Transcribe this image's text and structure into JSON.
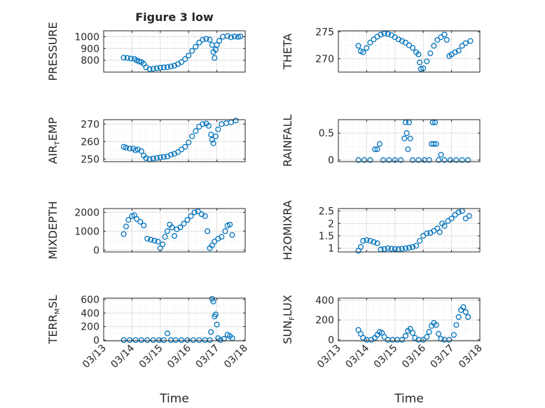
{
  "figure": {
    "title": "Figure 3 low",
    "xlabel": "Time",
    "date_ticks": [
      "03/13",
      "03/14",
      "03/15",
      "03/16",
      "03/17",
      "03/18"
    ]
  },
  "colors": {
    "marker": "#0072BD",
    "axis": "#262626",
    "grid": "#e0e0e0"
  },
  "chart_data": [
    {
      "type": "scatter",
      "name": "PRESSURE",
      "ylabel": "PRESSURE",
      "ylabel_sub": "",
      "xlim": [
        "03/13",
        "03/18"
      ],
      "ylim": [
        700,
        1050
      ],
      "yticks": [
        800,
        900,
        1000
      ],
      "grid": true,
      "points": [
        [
          "03/13 17:00",
          822
        ],
        [
          "03/13 20:00",
          820
        ],
        [
          "03/13 23:00",
          815
        ],
        [
          "03/14 02:00",
          812
        ],
        [
          "03/14 04:00",
          800
        ],
        [
          "03/14 06:00",
          790
        ],
        [
          "03/14 08:00",
          785
        ],
        [
          "03/14 10:00",
          770
        ],
        [
          "03/14 12:00",
          740
        ],
        [
          "03/14 15:00",
          725
        ],
        [
          "03/14 18:00",
          728
        ],
        [
          "03/14 21:00",
          732
        ],
        [
          "03/15 00:00",
          737
        ],
        [
          "03/15 03:00",
          740
        ],
        [
          "03/15 06:00",
          742
        ],
        [
          "03/15 09:00",
          748
        ],
        [
          "03/15 12:00",
          755
        ],
        [
          "03/15 15:00",
          768
        ],
        [
          "03/15 18:00",
          785
        ],
        [
          "03/15 21:00",
          810
        ],
        [
          "03/16 00:00",
          840
        ],
        [
          "03/16 03:00",
          880
        ],
        [
          "03/16 06:00",
          915
        ],
        [
          "03/16 09:00",
          950
        ],
        [
          "03/16 12:00",
          975
        ],
        [
          "03/16 15:00",
          982
        ],
        [
          "03/16 18:00",
          975
        ],
        [
          "03/16 20:00",
          930
        ],
        [
          "03/16 21:00",
          870
        ],
        [
          "03/16 22:00",
          820
        ],
        [
          "03/16 23:00",
          890
        ],
        [
          "03/17 00:00",
          930
        ],
        [
          "03/17 02:00",
          965
        ],
        [
          "03/17 05:00",
          1000
        ],
        [
          "03/17 09:00",
          1005
        ],
        [
          "03/17 12:00",
          995
        ],
        [
          "03/17 15:00",
          1002
        ],
        [
          "03/17 18:00",
          998
        ],
        [
          "03/17 20:00",
          1003
        ]
      ]
    },
    {
      "type": "scatter",
      "name": "THETA",
      "ylabel": "THETA",
      "ylabel_sub": "",
      "xlim": [
        "03/13",
        "03/18"
      ],
      "ylim": [
        267.5,
        275.2
      ],
      "yticks": [
        270,
        275
      ],
      "grid": true,
      "points": [
        [
          "03/13 17:00",
          272.4
        ],
        [
          "03/13 19:00",
          271.4
        ],
        [
          "03/13 21:00",
          271.2
        ],
        [
          "03/14 00:00",
          272
        ],
        [
          "03/14 03:00",
          273
        ],
        [
          "03/14 06:00",
          273.6
        ],
        [
          "03/14 09:00",
          274.1
        ],
        [
          "03/14 12:00",
          274.5
        ],
        [
          "03/14 15:00",
          274.7
        ],
        [
          "03/14 18:00",
          274.6
        ],
        [
          "03/14 21:00",
          274.4
        ],
        [
          "03/15 00:00",
          274
        ],
        [
          "03/15 03:00",
          273.6
        ],
        [
          "03/15 06:00",
          273.3
        ],
        [
          "03/15 09:00",
          273
        ],
        [
          "03/15 12:00",
          272.5
        ],
        [
          "03/15 15:00",
          272
        ],
        [
          "03/15 18:00",
          271.2
        ],
        [
          "03/15 20:00",
          270.8
        ],
        [
          "03/15 21:00",
          269.3
        ],
        [
          "03/15 22:00",
          268.1
        ],
        [
          "03/16 00:00",
          268.2
        ],
        [
          "03/16 03:00",
          269.5
        ],
        [
          "03/16 06:00",
          271
        ],
        [
          "03/16 09:00",
          272.4
        ],
        [
          "03/16 12:00",
          273.5
        ],
        [
          "03/16 15:00",
          274
        ],
        [
          "03/16 18:00",
          274.5
        ],
        [
          "03/16 20:00",
          273.5
        ],
        [
          "03/16 22:00",
          270.5
        ],
        [
          "03/17 00:00",
          270.8
        ],
        [
          "03/17 03:00",
          271.2
        ],
        [
          "03/17 06:00",
          271.5
        ],
        [
          "03/17 09:00",
          272.4
        ],
        [
          "03/17 12:00",
          272.9
        ],
        [
          "03/17 16:00",
          273.3
        ]
      ]
    },
    {
      "type": "scatter",
      "name": "AIR_TEMP",
      "ylabel": "AIR",
      "ylabel_sub": "T",
      "ylabel_rest": "EMP",
      "xlim": [
        "03/13",
        "03/18"
      ],
      "ylim": [
        248.5,
        272.5
      ],
      "yticks": [
        250,
        260,
        270
      ],
      "grid": true,
      "points": [
        [
          "03/13 17:00",
          257
        ],
        [
          "03/13 19:00",
          256.5
        ],
        [
          "03/13 22:00",
          256
        ],
        [
          "03/14 01:00",
          256
        ],
        [
          "03/14 03:00",
          255
        ],
        [
          "03/14 05:00",
          255.5
        ],
        [
          "03/14 08:00",
          254.5
        ],
        [
          "03/14 10:00",
          252
        ],
        [
          "03/14 12:00",
          250.5
        ],
        [
          "03/14 15:00",
          250
        ],
        [
          "03/14 18:00",
          250.3
        ],
        [
          "03/14 21:00",
          250.6
        ],
        [
          "03/15 00:00",
          251
        ],
        [
          "03/15 03:00",
          251.2
        ],
        [
          "03/15 06:00",
          251.5
        ],
        [
          "03/15 09:00",
          252.5
        ],
        [
          "03/15 12:00",
          253
        ],
        [
          "03/15 15:00",
          254
        ],
        [
          "03/15 18:00",
          255.5
        ],
        [
          "03/15 21:00",
          257
        ],
        [
          "03/16 00:00",
          259.5
        ],
        [
          "03/16 03:00",
          263
        ],
        [
          "03/16 06:00",
          266
        ],
        [
          "03/16 09:00",
          268.5
        ],
        [
          "03/16 12:00",
          270
        ],
        [
          "03/16 15:00",
          270.3
        ],
        [
          "03/16 17:00",
          269
        ],
        [
          "03/16 19:00",
          264
        ],
        [
          "03/16 20:00",
          261
        ],
        [
          "03/16 21:00",
          259
        ],
        [
          "03/16 23:00",
          263
        ],
        [
          "03/17 01:00",
          267
        ],
        [
          "03/17 04:00",
          270
        ],
        [
          "03/17 08:00",
          270.5
        ],
        [
          "03/17 12:00",
          271
        ],
        [
          "03/17 16:00",
          272
        ]
      ]
    },
    {
      "type": "scatter",
      "name": "RAINFALL",
      "ylabel": "RAINFALL",
      "ylabel_sub": "",
      "xlim": [
        "03/13",
        "03/18"
      ],
      "ylim": [
        -0.03,
        0.75
      ],
      "yticks": [
        0,
        0.5
      ],
      "grid": true,
      "points": [
        [
          "03/13 17:00",
          0
        ],
        [
          "03/13 22:00",
          0
        ],
        [
          "03/14 03:00",
          0
        ],
        [
          "03/14 07:00",
          0.2
        ],
        [
          "03/14 09:00",
          0.2
        ],
        [
          "03/14 11:00",
          0.3
        ],
        [
          "03/14 14:00",
          0
        ],
        [
          "03/14 19:00",
          0
        ],
        [
          "03/15 00:00",
          0
        ],
        [
          "03/15 05:00",
          0
        ],
        [
          "03/15 08:00",
          0.4
        ],
        [
          "03/15 09:00",
          0.7
        ],
        [
          "03/15 10:00",
          0.5
        ],
        [
          "03/15 11:00",
          0.2
        ],
        [
          "03/15 12:00",
          0.7
        ],
        [
          "03/15 13:00",
          0.4
        ],
        [
          "03/15 15:00",
          0
        ],
        [
          "03/15 20:00",
          0
        ],
        [
          "03/16 01:00",
          0
        ],
        [
          "03/16 05:00",
          0
        ],
        [
          "03/16 07:00",
          0.3
        ],
        [
          "03/16 08:00",
          0.7
        ],
        [
          "03/16 09:00",
          0.3
        ],
        [
          "03/16 10:00",
          0.7
        ],
        [
          "03/16 11:00",
          0.3
        ],
        [
          "03/16 13:00",
          0
        ],
        [
          "03/16 15:00",
          0.1
        ],
        [
          "03/16 18:00",
          0
        ],
        [
          "03/16 23:00",
          0
        ],
        [
          "03/17 04:00",
          0
        ],
        [
          "03/17 09:00",
          0
        ],
        [
          "03/17 14:00",
          0
        ]
      ]
    },
    {
      "type": "scatter",
      "name": "MIXDEPTH",
      "ylabel": "MIXDEPTH",
      "ylabel_sub": "",
      "xlim": [
        "03/13",
        "03/18"
      ],
      "ylim": [
        -100,
        2200
      ],
      "yticks": [
        0,
        1000,
        2000
      ],
      "grid": true,
      "points": [
        [
          "03/13 17:00",
          850
        ],
        [
          "03/13 19:00",
          1250
        ],
        [
          "03/13 21:00",
          1600
        ],
        [
          "03/14 00:00",
          1800
        ],
        [
          "03/14 02:00",
          1850
        ],
        [
          "03/14 04:00",
          1650
        ],
        [
          "03/14 07:00",
          1500
        ],
        [
          "03/14 10:00",
          1300
        ],
        [
          "03/14 13:00",
          600
        ],
        [
          "03/14 16:00",
          550
        ],
        [
          "03/14 19:00",
          500
        ],
        [
          "03/14 22:00",
          450
        ],
        [
          "03/15 00:00",
          100
        ],
        [
          "03/15 02:00",
          300
        ],
        [
          "03/15 04:00",
          700
        ],
        [
          "03/15 06:00",
          1000
        ],
        [
          "03/15 08:00",
          1350
        ],
        [
          "03/15 10:00",
          1200
        ],
        [
          "03/15 12:00",
          750
        ],
        [
          "03/15 14:00",
          1100
        ],
        [
          "03/15 17:00",
          1200
        ],
        [
          "03/15 20:00",
          1400
        ],
        [
          "03/15 23:00",
          1600
        ],
        [
          "03/16 02:00",
          1800
        ],
        [
          "03/16 05:00",
          2000
        ],
        [
          "03/16 08:00",
          2050
        ],
        [
          "03/16 11:00",
          1900
        ],
        [
          "03/16 14:00",
          1800
        ],
        [
          "03/16 16:00",
          1000
        ],
        [
          "03/16 18:00",
          100
        ],
        [
          "03/16 20:00",
          250
        ],
        [
          "03/16 22:00",
          450
        ],
        [
          "03/17 01:00",
          600
        ],
        [
          "03/17 04:00",
          700
        ],
        [
          "03/17 07:00",
          1000
        ],
        [
          "03/17 09:00",
          1300
        ],
        [
          "03/17 11:00",
          1350
        ],
        [
          "03/17 13:00",
          800
        ]
      ]
    },
    {
      "type": "scatter",
      "name": "H2OMIXRA",
      "ylabel": "H2OMIXRA",
      "ylabel_sub": "",
      "xlim": [
        "03/13",
        "03/18"
      ],
      "ylim": [
        0.85,
        2.6
      ],
      "yticks": [
        1,
        1.5,
        2,
        2.5
      ],
      "grid": true,
      "points": [
        [
          "03/13 17:00",
          0.9
        ],
        [
          "03/13 19:00",
          1.05
        ],
        [
          "03/13 21:00",
          1.3
        ],
        [
          "03/14 00:00",
          1.33
        ],
        [
          "03/14 03:00",
          1.3
        ],
        [
          "03/14 06:00",
          1.25
        ],
        [
          "03/14 09:00",
          1.2
        ],
        [
          "03/14 12:00",
          0.95
        ],
        [
          "03/14 15:00",
          0.97
        ],
        [
          "03/14 18:00",
          1
        ],
        [
          "03/14 21:00",
          0.98
        ],
        [
          "03/15 00:00",
          0.97
        ],
        [
          "03/15 03:00",
          0.96
        ],
        [
          "03/15 06:00",
          0.98
        ],
        [
          "03/15 09:00",
          1
        ],
        [
          "03/15 12:00",
          1.02
        ],
        [
          "03/15 15:00",
          1.05
        ],
        [
          "03/15 18:00",
          1.1
        ],
        [
          "03/15 21:00",
          1.3
        ],
        [
          "03/16 00:00",
          1.5
        ],
        [
          "03/16 03:00",
          1.6
        ],
        [
          "03/16 06:00",
          1.62
        ],
        [
          "03/16 09:00",
          1.7
        ],
        [
          "03/16 12:00",
          1.8
        ],
        [
          "03/16 14:00",
          1.65
        ],
        [
          "03/16 16:00",
          2
        ],
        [
          "03/16 18:00",
          1.9
        ],
        [
          "03/16 21:00",
          2.1
        ],
        [
          "03/17 00:00",
          2.2
        ],
        [
          "03/17 03:00",
          2.35
        ],
        [
          "03/17 06:00",
          2.45
        ],
        [
          "03/17 09:00",
          2.5
        ],
        [
          "03/17 12:00",
          2.2
        ],
        [
          "03/17 15:00",
          2.3
        ]
      ]
    },
    {
      "type": "scatter",
      "name": "TERR_MSL",
      "ylabel": "TERR",
      "ylabel_sub": "M",
      "ylabel_rest": "SL",
      "xlim": [
        "03/13",
        "03/18"
      ],
      "ylim": [
        -10,
        620
      ],
      "yticks": [
        0,
        200,
        400,
        600
      ],
      "grid": true,
      "points": [
        [
          "03/13 17:00",
          0
        ],
        [
          "03/13 22:00",
          0
        ],
        [
          "03/14 03:00",
          0
        ],
        [
          "03/14 08:00",
          0
        ],
        [
          "03/14 13:00",
          0
        ],
        [
          "03/14 18:00",
          0
        ],
        [
          "03/14 23:00",
          0
        ],
        [
          "03/15 03:00",
          0
        ],
        [
          "03/15 06:00",
          100
        ],
        [
          "03/15 09:00",
          0
        ],
        [
          "03/15 13:00",
          0
        ],
        [
          "03/15 18:00",
          0
        ],
        [
          "03/15 23:00",
          0
        ],
        [
          "03/16 04:00",
          0
        ],
        [
          "03/16 09:00",
          0
        ],
        [
          "03/16 14:00",
          0
        ],
        [
          "03/16 18:00",
          0
        ],
        [
          "03/16 19:00",
          120
        ],
        [
          "03/16 20:00",
          610
        ],
        [
          "03/16 21:00",
          570
        ],
        [
          "03/16 22:00",
          350
        ],
        [
          "03/16 23:00",
          380
        ],
        [
          "03/17 00:00",
          230
        ],
        [
          "03/17 01:00",
          30
        ],
        [
          "03/17 03:00",
          0
        ],
        [
          "03/17 06:00",
          20
        ],
        [
          "03/17 09:00",
          80
        ],
        [
          "03/17 11:00",
          60
        ],
        [
          "03/17 13:00",
          30
        ]
      ]
    },
    {
      "type": "scatter",
      "name": "SUN_FLUX",
      "ylabel": "SUN",
      "ylabel_sub": "F",
      "ylabel_rest": "LUX",
      "xlim": [
        "03/13",
        "03/18"
      ],
      "ylim": [
        -10,
        420
      ],
      "yticks": [
        0,
        200,
        400
      ],
      "grid": true,
      "points": [
        [
          "03/13 17:00",
          100
        ],
        [
          "03/13 19:00",
          60
        ],
        [
          "03/13 21:00",
          20
        ],
        [
          "03/14 00:00",
          0
        ],
        [
          "03/14 04:00",
          0
        ],
        [
          "03/14 07:00",
          20
        ],
        [
          "03/14 09:00",
          50
        ],
        [
          "03/14 11:00",
          80
        ],
        [
          "03/14 13:00",
          70
        ],
        [
          "03/14 15:00",
          30
        ],
        [
          "03/14 18:00",
          0
        ],
        [
          "03/14 22:00",
          0
        ],
        [
          "03/15 02:00",
          0
        ],
        [
          "03/15 06:00",
          0
        ],
        [
          "03/15 09:00",
          40
        ],
        [
          "03/15 11:00",
          90
        ],
        [
          "03/15 13:00",
          110
        ],
        [
          "03/15 15:00",
          70
        ],
        [
          "03/15 17:00",
          20
        ],
        [
          "03/15 20:00",
          0
        ],
        [
          "03/16 00:00",
          0
        ],
        [
          "03/16 03:00",
          30
        ],
        [
          "03/16 05:00",
          80
        ],
        [
          "03/16 07:00",
          140
        ],
        [
          "03/16 09:00",
          170
        ],
        [
          "03/16 11:00",
          150
        ],
        [
          "03/16 13:00",
          60
        ],
        [
          "03/16 15:00",
          10
        ],
        [
          "03/16 18:00",
          0
        ],
        [
          "03/16 22:00",
          0
        ],
        [
          "03/17 02:00",
          50
        ],
        [
          "03/17 04:00",
          150
        ],
        [
          "03/17 06:00",
          230
        ],
        [
          "03/17 08:00",
          300
        ],
        [
          "03/17 10:00",
          330
        ],
        [
          "03/17 12:00",
          280
        ],
        [
          "03/17 14:00",
          230
        ]
      ]
    }
  ]
}
